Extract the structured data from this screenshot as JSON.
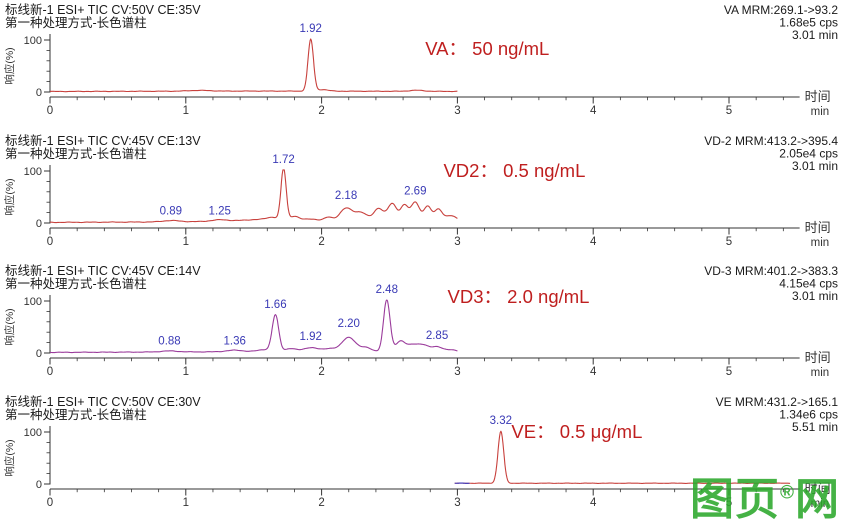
{
  "page": {
    "background": "#ffffff"
  },
  "watermark": {
    "prefix": "图页",
    "reg": "®",
    "suffix": "网",
    "color": "#2ca82c"
  },
  "axis": {
    "x_label": "时间",
    "x_unit": "min",
    "y_label": "响应(%)",
    "x_range": [
      0,
      5.52
    ],
    "x_major_ticks": [
      0,
      1,
      2,
      3,
      4,
      5
    ],
    "x_minor_step": 0.2,
    "y_major_ticks": [
      100,
      0
    ],
    "y_minor_step": 20,
    "grid": false
  },
  "colors": {
    "header_text": "#1a1a1a",
    "info_text": "#1a1a1a",
    "peak_label": "#3939b5",
    "annotation": "#bf1f1f",
    "axis": "#333333",
    "trace_red": "#c8413d",
    "trace_purple": "#9a3b9b",
    "lead_blue": "#3a3ac0"
  },
  "chart_data": [
    {
      "type": "line",
      "name": "VA",
      "header_line1": "标线新-1 ESI+ TIC CV:50V CE:35V",
      "header_line2": "第一种处理方式-长色谱柱",
      "info_lines": [
        "VA MRM:269.1->93.2",
        "1.68e5 cps",
        "3.01 min"
      ],
      "annotation": {
        "text": "VA： 50 ng/mL",
        "x": 3.22,
        "y": 55
      },
      "trace_color": "#c8413d",
      "trace_range": [
        0,
        3.0
      ],
      "noise": 0.4,
      "peaks": [
        {
          "t": 1.1,
          "h": 1.5,
          "w": 0.08
        },
        {
          "t": 1.92,
          "h": 100,
          "w": 0.02,
          "label": "1.92",
          "lh": 110
        },
        {
          "t": 2.01,
          "h": 3,
          "w": 0.04
        },
        {
          "t": 2.7,
          "h": 2,
          "w": 0.05
        }
      ],
      "baseline": [
        [
          0,
          1.0
        ],
        [
          1.5,
          1.8
        ],
        [
          3.0,
          1.2
        ]
      ]
    },
    {
      "type": "line",
      "name": "VD2",
      "header_line1": "标线新-1 ESI+ TIC CV:45V CE:13V",
      "header_line2": "第一种处理方式-长色谱柱",
      "info_lines": [
        "VD-2 MRM:413.2->395.4",
        "2.05e4 cps",
        "3.01 min"
      ],
      "annotation": {
        "text": "VD2： 0.5 ng/mL",
        "x": 3.42,
        "y": 46
      },
      "trace_color": "#c8413d",
      "trace_range": [
        0,
        3.0
      ],
      "noise": 0.5,
      "peaks": [
        {
          "t": 0.89,
          "h": 2.5,
          "w": 0.06,
          "label": "0.89",
          "lh": 11
        },
        {
          "t": 1.25,
          "h": 3.0,
          "w": 0.06,
          "label": "1.25",
          "lh": 11
        },
        {
          "t": 1.55,
          "h": 3,
          "w": 0.12
        },
        {
          "t": 1.64,
          "h": 5,
          "w": 0.04
        },
        {
          "t": 1.72,
          "h": 100,
          "w": 0.019,
          "label": "1.72",
          "lh": 110
        },
        {
          "t": 1.8,
          "h": 9,
          "w": 0.035
        },
        {
          "t": 1.92,
          "h": 4,
          "w": 0.05
        },
        {
          "t": 2.05,
          "h": 7,
          "w": 0.03
        },
        {
          "t": 2.18,
          "h": 24,
          "w": 0.045,
          "label": "2.18",
          "lh": 40
        },
        {
          "t": 2.29,
          "h": 16,
          "w": 0.045
        },
        {
          "t": 2.42,
          "h": 24,
          "w": 0.035
        },
        {
          "t": 2.52,
          "h": 33,
          "w": 0.033
        },
        {
          "t": 2.61,
          "h": 30,
          "w": 0.028
        },
        {
          "t": 2.69,
          "h": 36,
          "w": 0.03,
          "label": "2.69",
          "lh": 49
        },
        {
          "t": 2.78,
          "h": 28,
          "w": 0.028
        },
        {
          "t": 2.86,
          "h": 22,
          "w": 0.028
        },
        {
          "t": 2.95,
          "h": 10,
          "w": 0.04
        }
      ],
      "baseline": [
        [
          0,
          1.2
        ],
        [
          0.8,
          2.0
        ],
        [
          1.6,
          4.0
        ],
        [
          1.8,
          3.5
        ],
        [
          2.1,
          4.0
        ],
        [
          3.0,
          4.0
        ]
      ]
    },
    {
      "type": "line",
      "name": "VD3",
      "header_line1": "标线新-1 ESI+ TIC CV:45V CE:14V",
      "header_line2": "第一种处理方式-长色谱柱",
      "info_lines": [
        "VD-3 MRM:401.2->383.3",
        "4.15e4 cps",
        "3.01 min"
      ],
      "annotation": {
        "text": "VD3： 2.0 ng/mL",
        "x": 3.45,
        "y": 42
      },
      "trace_color": "#9a3b9b",
      "trace_range": [
        0,
        3.0
      ],
      "noise": 0.45,
      "peaks": [
        {
          "t": 0.88,
          "h": 2.0,
          "w": 0.06,
          "label": "0.88",
          "lh": 11
        },
        {
          "t": 1.36,
          "h": 3.0,
          "w": 0.06,
          "label": "1.36",
          "lh": 11
        },
        {
          "t": 1.58,
          "h": 4,
          "w": 0.05
        },
        {
          "t": 1.66,
          "h": 70,
          "w": 0.024,
          "label": "1.66",
          "lh": 81
        },
        {
          "t": 1.77,
          "h": 6,
          "w": 0.04
        },
        {
          "t": 1.92,
          "h": 8,
          "w": 0.055,
          "label": "1.92",
          "lh": 19
        },
        {
          "t": 2.06,
          "h": 6,
          "w": 0.045
        },
        {
          "t": 2.2,
          "h": 28,
          "w": 0.05,
          "label": "2.20",
          "lh": 44
        },
        {
          "t": 2.33,
          "h": 8,
          "w": 0.04
        },
        {
          "t": 2.48,
          "h": 100,
          "w": 0.024,
          "label": "2.48",
          "lh": 110
        },
        {
          "t": 2.58,
          "h": 20,
          "w": 0.035
        },
        {
          "t": 2.67,
          "h": 13,
          "w": 0.04
        },
        {
          "t": 2.75,
          "h": 12,
          "w": 0.04
        },
        {
          "t": 2.85,
          "h": 10,
          "w": 0.04,
          "label": "2.85",
          "lh": 21
        },
        {
          "t": 2.96,
          "h": 4,
          "w": 0.04
        }
      ],
      "baseline": [
        [
          0,
          1.2
        ],
        [
          1.5,
          2.5
        ],
        [
          3.0,
          2.0
        ]
      ]
    },
    {
      "type": "line",
      "name": "VE",
      "header_line1": "标线新-1 ESI+ TIC CV:50V CE:30V",
      "header_line2": "第一种处理方式-长色谱柱",
      "info_lines": [
        "VE MRM:431.2->165.1",
        "1.34e6 cps",
        "5.51 min"
      ],
      "annotation": {
        "text": "VE： 0.5 μg/mL",
        "x": 3.88,
        "y": 46
      },
      "trace_color": "#c8413d",
      "trace_range": [
        2.98,
        5.45
      ],
      "lead": {
        "until": 3.09,
        "color": "#3a3ac0"
      },
      "noise": 0.35,
      "peaks": [
        {
          "t": 3.32,
          "h": 100,
          "w": 0.021,
          "label": "3.32",
          "lh": 110
        }
      ],
      "baseline": [
        [
          2.98,
          1.5
        ],
        [
          5.45,
          1.5
        ]
      ]
    }
  ]
}
